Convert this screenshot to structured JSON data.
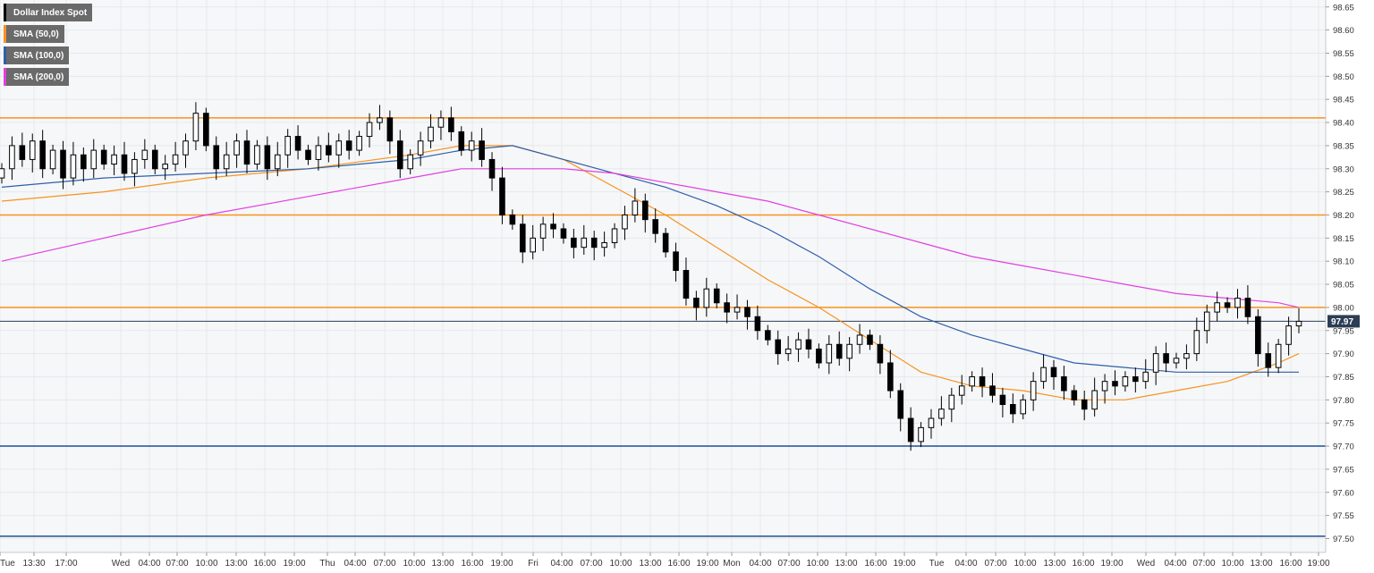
{
  "legend": {
    "items": [
      {
        "label": "Dollar Index Spot",
        "color": "#000000"
      },
      {
        "label": "SMA (50,0)",
        "color": "#f7931e"
      },
      {
        "label": "SMA (100,0)",
        "color": "#2e5fa8"
      },
      {
        "label": "SMA (200,0)",
        "color": "#e040e0"
      }
    ]
  },
  "chart_data": {
    "type": "candlestick",
    "title": "Dollar Index Spot",
    "x_tick_labels": [
      "Tue",
      "13:30",
      "17:00",
      "Wed",
      "04:00",
      "07:00",
      "10:00",
      "13:00",
      "16:00",
      "19:00",
      "Thu",
      "04:00",
      "07:00",
      "10:00",
      "13:00",
      "16:00",
      "19:00",
      "Fri",
      "04:00",
      "07:00",
      "10:00",
      "13:00",
      "16:00",
      "19:00",
      "Mon",
      "04:00",
      "07:00",
      "10:00",
      "13:00",
      "16:00",
      "19:00",
      "Tue",
      "04:00",
      "07:00",
      "10:00",
      "13:00",
      "16:00",
      "19:00",
      "Wed",
      "04:00",
      "07:00",
      "10:00",
      "13:00",
      "16:00",
      "19:00"
    ],
    "y_ticks": [
      "98.65",
      "98.60",
      "98.55",
      "98.50",
      "98.45",
      "98.40",
      "98.35",
      "98.30",
      "98.25",
      "98.20",
      "98.15",
      "98.10",
      "98.05",
      "98.00",
      "97.95",
      "97.90",
      "97.85",
      "97.80",
      "97.75",
      "97.70",
      "97.65",
      "97.60",
      "97.55",
      "97.50"
    ],
    "ylim": [
      97.47,
      98.665
    ],
    "current_price": "97.97",
    "horizontal_levels": [
      {
        "value": 98.41,
        "color": "#f7931e"
      },
      {
        "value": 98.2,
        "color": "#f7931e"
      },
      {
        "value": 98.0,
        "color": "#f7931e"
      },
      {
        "value": 97.7,
        "color": "#1f4e99"
      },
      {
        "value": 97.505,
        "color": "#1f4e99"
      }
    ],
    "candles_close": [
      98.3,
      98.35,
      98.32,
      98.36,
      98.3,
      98.34,
      98.28,
      98.33,
      98.3,
      98.34,
      98.31,
      98.33,
      98.29,
      98.32,
      98.34,
      98.3,
      98.31,
      98.33,
      98.36,
      98.42,
      98.35,
      98.3,
      98.33,
      98.36,
      98.31,
      98.35,
      98.3,
      98.33,
      98.37,
      98.34,
      98.32,
      98.35,
      98.33,
      98.36,
      98.34,
      98.37,
      98.4,
      98.41,
      98.36,
      98.3,
      98.33,
      98.36,
      98.39,
      98.41,
      98.38,
      98.34,
      98.36,
      98.32,
      98.28,
      98.2,
      98.18,
      98.12,
      98.15,
      98.18,
      98.17,
      98.15,
      98.13,
      98.15,
      98.13,
      98.14,
      98.17,
      98.2,
      98.23,
      98.19,
      98.16,
      98.12,
      98.08,
      98.02,
      98.0,
      98.04,
      98.01,
      97.99,
      98.0,
      97.98,
      97.95,
      97.93,
      97.9,
      97.91,
      97.93,
      97.91,
      97.88,
      97.92,
      97.89,
      97.92,
      97.94,
      97.92,
      97.88,
      97.82,
      97.76,
      97.71,
      97.74,
      97.76,
      97.78,
      97.81,
      97.83,
      97.85,
      97.83,
      97.81,
      97.79,
      97.77,
      97.8,
      97.84,
      97.87,
      97.85,
      97.82,
      97.8,
      97.78,
      97.82,
      97.84,
      97.83,
      97.85,
      97.84,
      97.86,
      97.9,
      97.88,
      97.89,
      97.9,
      97.95,
      97.99,
      98.01,
      98.0,
      98.02,
      97.98,
      97.9,
      97.87,
      97.92,
      97.96,
      97.97
    ],
    "series": [
      {
        "name": "SMA (50,0)",
        "x": [
          0,
          10,
          20,
          30,
          40,
          45,
          50,
          55,
          60,
          65,
          70,
          75,
          80,
          85,
          90,
          95,
          100,
          105,
          110,
          115,
          120,
          125,
          127
        ],
        "values": [
          98.23,
          98.25,
          98.28,
          98.3,
          98.33,
          98.35,
          98.35,
          98.32,
          98.26,
          98.2,
          98.13,
          98.06,
          98.0,
          97.93,
          97.86,
          97.83,
          97.82,
          97.8,
          97.8,
          97.82,
          97.84,
          97.88,
          97.9
        ]
      },
      {
        "name": "SMA (100,0)",
        "x": [
          0,
          10,
          20,
          30,
          40,
          45,
          50,
          55,
          60,
          65,
          70,
          75,
          80,
          85,
          90,
          95,
          100,
          105,
          110,
          115,
          120,
          125,
          127
        ],
        "values": [
          98.26,
          98.28,
          98.29,
          98.3,
          98.32,
          98.34,
          98.35,
          98.32,
          98.29,
          98.26,
          98.22,
          98.17,
          98.11,
          98.04,
          97.98,
          97.94,
          97.91,
          97.88,
          97.87,
          97.86,
          97.86,
          97.86,
          97.86
        ]
      },
      {
        "name": "SMA (200,0)",
        "x": [
          0,
          10,
          20,
          30,
          40,
          45,
          50,
          55,
          60,
          65,
          70,
          75,
          80,
          85,
          90,
          95,
          100,
          105,
          110,
          115,
          120,
          125,
          127
        ],
        "values": [
          98.1,
          98.15,
          98.2,
          98.24,
          98.28,
          98.3,
          98.3,
          98.3,
          98.29,
          98.27,
          98.25,
          98.23,
          98.2,
          98.17,
          98.14,
          98.11,
          98.09,
          98.07,
          98.05,
          98.03,
          98.02,
          98.01,
          98.0
        ]
      }
    ]
  }
}
